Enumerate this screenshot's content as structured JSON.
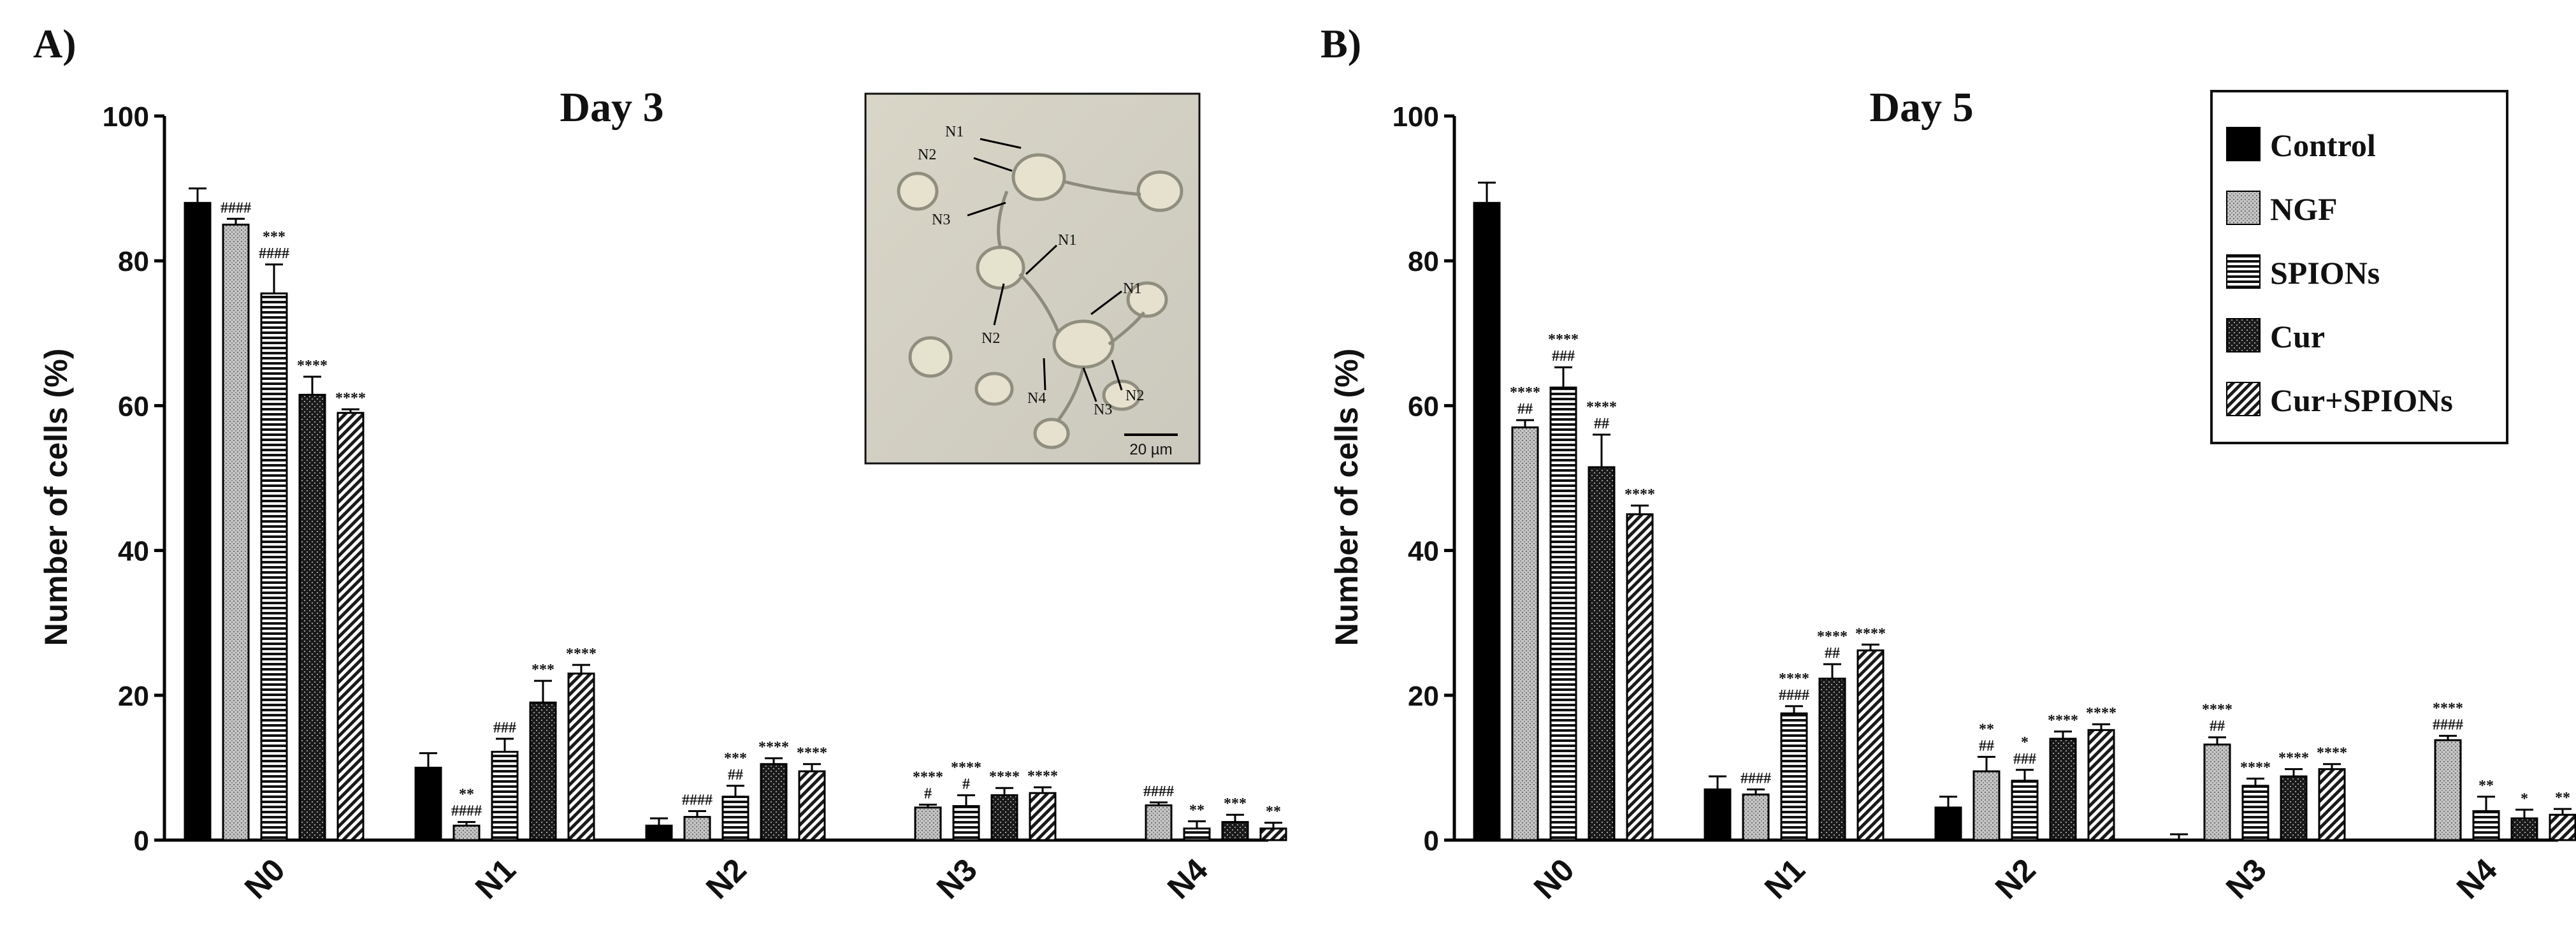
{
  "panels": [
    {
      "letter": "A)"
    },
    {
      "letter": "B)"
    }
  ],
  "inset": {
    "labels": [
      "N1",
      "N2",
      "N3",
      "N1",
      "N2",
      "N1",
      "N4",
      "N3",
      "N2"
    ],
    "scale_bar_label": "20 µm"
  },
  "colors": {
    "Control": "#000000",
    "NGF": "#bdbdbd",
    "SPIONs": "#1c1c1c",
    "Cur": "#2a2a2a",
    "Cur+SPIONs": "#3a3a3a"
  },
  "chart_data": [
    {
      "type": "bar",
      "title": "Day 3",
      "ylabel": "Number of cells (%)",
      "xlabel": "",
      "ylim": [
        0,
        100
      ],
      "yticks": [
        0,
        20,
        40,
        60,
        80,
        100
      ],
      "categories": [
        "N0",
        "N1",
        "N2",
        "N3",
        "N4"
      ],
      "series": [
        {
          "name": "Control",
          "values": [
            88,
            10,
            2,
            0,
            0
          ],
          "errors": [
            2,
            2,
            1,
            0,
            0
          ],
          "annotations": [
            "",
            "",
            "",
            "",
            ""
          ]
        },
        {
          "name": "NGF",
          "values": [
            85,
            2,
            3.2,
            4.5,
            4.8
          ],
          "errors": [
            0.8,
            0.5,
            0.8,
            0.4,
            0.4
          ],
          "annotations": [
            "####",
            "**\n####",
            "####",
            "****\n#",
            "####"
          ]
        },
        {
          "name": "SPIONs",
          "values": [
            75.5,
            12.2,
            6,
            4.7,
            1.6
          ],
          "errors": [
            4,
            1.8,
            1.5,
            1.5,
            1
          ],
          "annotations": [
            "***\n####",
            "###",
            "***\n##",
            "****\n#",
            "**"
          ]
        },
        {
          "name": "Cur",
          "values": [
            61.5,
            19,
            10.5,
            6.2,
            2.5
          ],
          "errors": [
            2.5,
            3,
            0.8,
            1,
            1
          ],
          "annotations": [
            "****",
            "***",
            "****",
            "****",
            "***"
          ]
        },
        {
          "name": "Cur+SPIONs",
          "values": [
            59,
            23,
            9.5,
            6.5,
            1.6
          ],
          "errors": [
            0.5,
            1.2,
            1,
            0.8,
            0.8
          ],
          "annotations": [
            "****",
            "****",
            "****",
            "****",
            "**"
          ]
        }
      ],
      "legend": "none"
    },
    {
      "type": "bar",
      "title": "Day 5",
      "ylabel": "Number of cells (%)",
      "xlabel": "",
      "ylim": [
        0,
        100
      ],
      "yticks": [
        0,
        20,
        40,
        60,
        80,
        100
      ],
      "categories": [
        "N0",
        "N1",
        "N2",
        "N3",
        "N4"
      ],
      "series": [
        {
          "name": "Control",
          "values": [
            88,
            7,
            4.5,
            0,
            0
          ],
          "errors": [
            2.8,
            1.8,
            1.5,
            0.8,
            0
          ],
          "annotations": [
            "",
            "",
            "",
            "",
            ""
          ]
        },
        {
          "name": "NGF",
          "values": [
            57,
            6.3,
            9.5,
            13.2,
            13.8
          ],
          "errors": [
            1,
            0.7,
            2,
            1,
            0.6
          ],
          "annotations": [
            "****\n##",
            "####",
            "**\n##",
            "****\n##",
            "****\n####"
          ]
        },
        {
          "name": "SPIONs",
          "values": [
            62.5,
            17.5,
            8.2,
            7.5,
            4
          ],
          "errors": [
            2.8,
            1,
            1.5,
            1,
            2
          ],
          "annotations": [
            "****\n###",
            "****\n####",
            "*\n###",
            "****",
            "**"
          ]
        },
        {
          "name": "Cur",
          "values": [
            51.5,
            22.3,
            14,
            8.8,
            3
          ],
          "errors": [
            4.5,
            2,
            1,
            1,
            1.2
          ],
          "annotations": [
            "****\n##",
            "****\n##",
            "****",
            "****",
            "*"
          ]
        },
        {
          "name": "Cur+SPIONs",
          "values": [
            45,
            26.2,
            15.2,
            9.8,
            3.5
          ],
          "errors": [
            1.2,
            0.8,
            0.8,
            0.7,
            0.8
          ],
          "annotations": [
            "****",
            "****",
            "****",
            "****",
            "**"
          ]
        }
      ],
      "legend": "top-right"
    }
  ]
}
